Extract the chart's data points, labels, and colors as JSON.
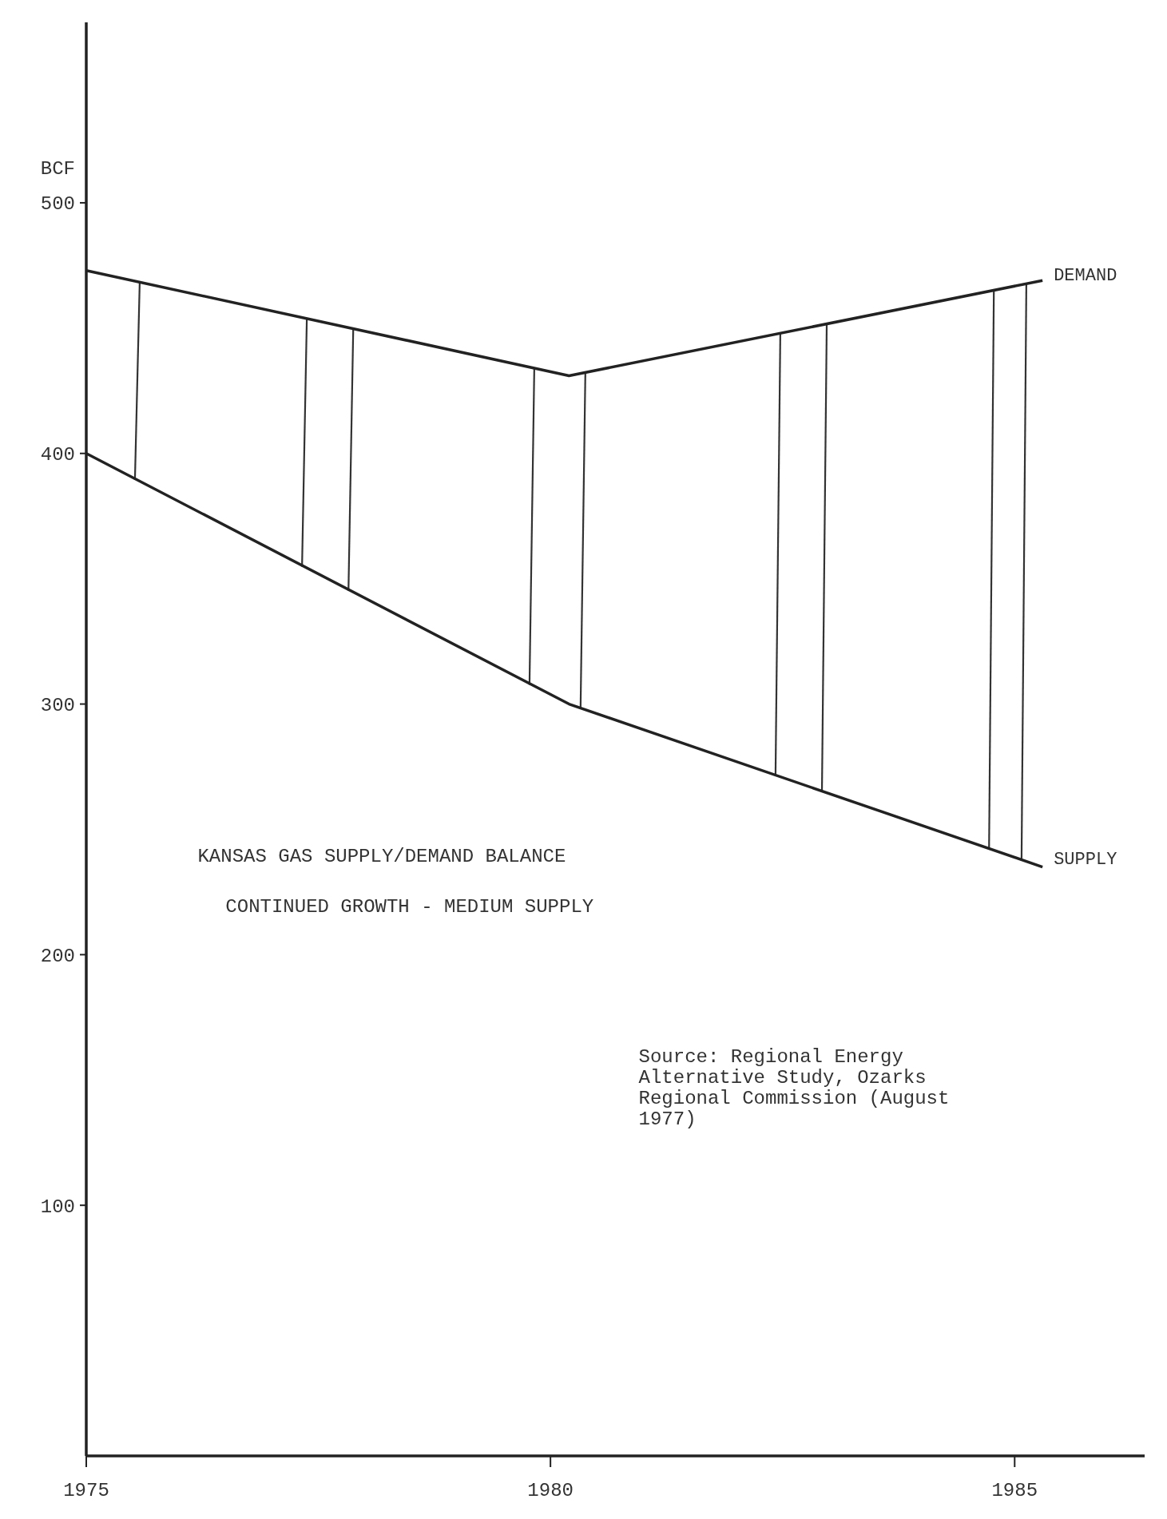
{
  "chart_data": {
    "type": "line",
    "title": "KANSAS GAS SUPPLY/DEMAND BALANCE",
    "subtitle": "CONTINUED GROWTH - MEDIUM SUPPLY",
    "ylabel": "BCF",
    "x": [
      1975,
      1980.2,
      1985.3
    ],
    "series": [
      {
        "name": "DEMAND",
        "color": "#222222",
        "values": [
          473,
          431,
          469
        ]
      },
      {
        "name": "SUPPLY",
        "color": "#222222",
        "values": [
          400,
          300,
          235
        ]
      }
    ],
    "xlim": [
      1975,
      1986.4
    ],
    "xticks": [
      1975,
      1980,
      1985
    ],
    "ylim": [
      0,
      572
    ],
    "yticks": [
      100,
      200,
      300,
      400,
      500
    ],
    "grid": false,
    "legend": false,
    "marker": "none",
    "line_style": "solid",
    "annotations": [
      "Source: Regional Energy Alternative Study, Ozarks Regional Commission (August 1977)"
    ]
  }
}
